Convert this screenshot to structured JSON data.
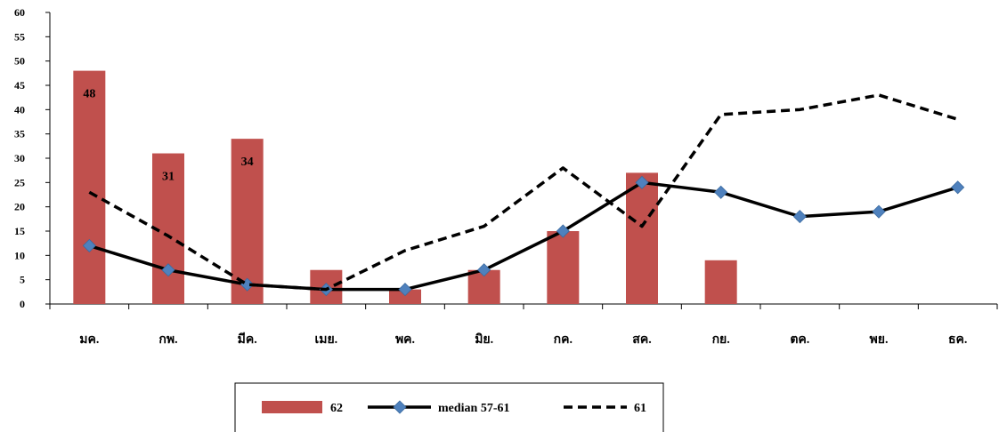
{
  "chart_data": {
    "type": "bar",
    "categories": [
      "มค.",
      "กพ.",
      "มีค.",
      "เมย.",
      "พค.",
      "มิย.",
      "กค.",
      "สค.",
      "กย.",
      "ตค.",
      "พย.",
      "ธค."
    ],
    "ylim": [
      0,
      60
    ],
    "yticks": [
      0,
      5,
      10,
      15,
      20,
      25,
      30,
      35,
      40,
      45,
      50,
      55,
      60
    ],
    "grid": false,
    "legend_position": "bottom",
    "series": [
      {
        "name": "62",
        "type": "bar",
        "color": "#C0504D",
        "values": [
          48,
          31,
          34,
          7,
          3,
          7,
          15,
          27,
          9,
          null,
          null,
          null
        ]
      },
      {
        "name": "median 57-61",
        "type": "line",
        "color": "#000000",
        "marker": "diamond",
        "marker_color": "#4F81BD",
        "values": [
          12,
          7,
          4,
          3,
          3,
          7,
          15,
          25,
          23,
          18,
          19,
          24
        ]
      },
      {
        "name": "61",
        "type": "line",
        "color": "#000000",
        "dash": "dashed",
        "values": [
          23,
          14,
          4,
          3,
          11,
          16,
          28,
          16,
          39,
          40,
          43,
          38
        ]
      }
    ],
    "data_labels": [
      {
        "series": "62",
        "index": 0,
        "text": "48"
      },
      {
        "series": "62",
        "index": 1,
        "text": "31"
      },
      {
        "series": "62",
        "index": 2,
        "text": "34"
      }
    ]
  }
}
